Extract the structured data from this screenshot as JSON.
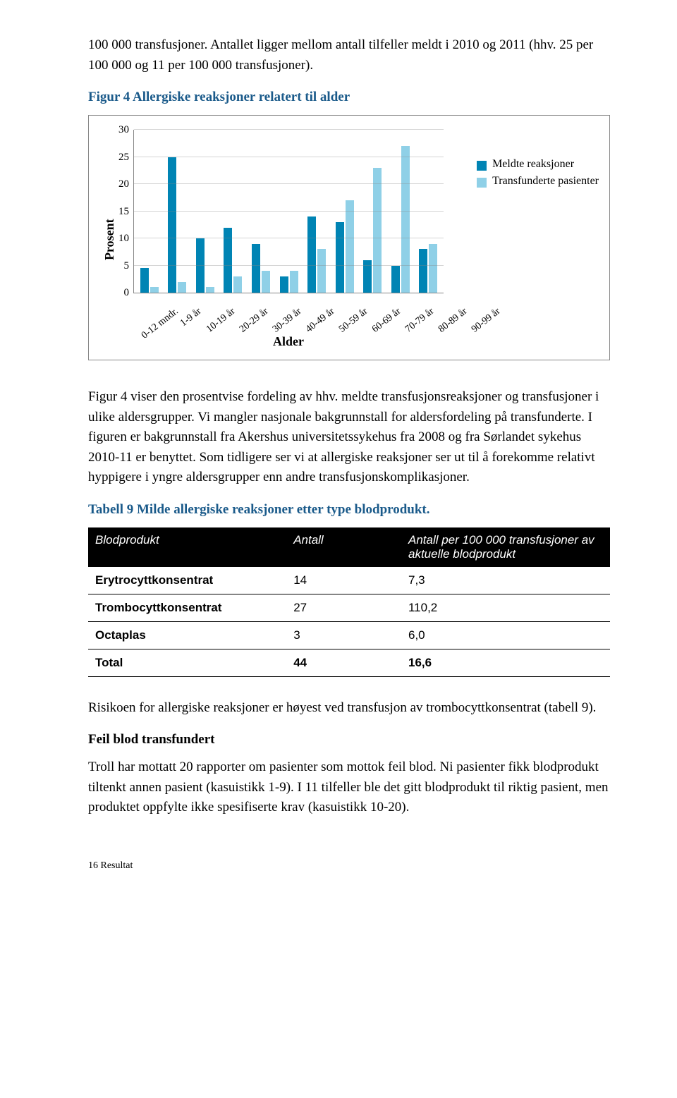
{
  "intro": "100 000 transfusjoner. Antallet ligger mellom antall tilfeller meldt i 2010 og 2011 (hhv. 25 per 100 000 og 11 per 100 000 transfusjoner).",
  "fig4_title": "Figur 4 Allergiske reaksjoner relatert til alder",
  "chart": {
    "type": "bar",
    "ylabel": "Prosent",
    "xlabel": "Alder",
    "ylim": [
      0,
      30
    ],
    "ytick_step": 5,
    "yticks": [
      "30",
      "25",
      "20",
      "15",
      "10",
      "5",
      "0"
    ],
    "categories": [
      "0-12 mndr.",
      "1-9 år",
      "10-19 år",
      "20-29 år",
      "30-39 år",
      "40-49 år",
      "50-59 år",
      "60-69 år",
      "70-79 år",
      "80-89 år",
      "90-99 år"
    ],
    "series": [
      {
        "name": "Meldte reaksjoner",
        "color": "#0084b4",
        "values": [
          4.5,
          25,
          10,
          12,
          9,
          3,
          14,
          13,
          6,
          5,
          8
        ]
      },
      {
        "name": "Transfunderte pasienter",
        "color": "#8fd0e7",
        "values": [
          1,
          2,
          1,
          3,
          4,
          4,
          8,
          17,
          23,
          27,
          9
        ]
      }
    ],
    "background_color": "#ffffff",
    "grid_color": "#bcbcbc"
  },
  "fig4_caption": "Figur 4 viser den prosentvise fordeling av hhv. meldte transfusjonsreaksjoner og transfusjoner i ulike aldersgrupper. Vi mangler nasjonale bakgrunnstall for aldersfordeling på transfunderte. I figuren er bakgrunnstall fra Akershus universitetssykehus fra 2008 og fra Sørlandet sykehus 2010-11 er benyttet. Som tidligere ser vi at allergiske reaksjoner ser ut til å forekomme relativt hyppigere i yngre aldersgrupper enn andre transfusjonskomplikasjoner.",
  "t9_title": "Tabell 9 Milde allergiske reaksjoner etter type blodprodukt.",
  "t9": {
    "columns": [
      "Blodprodukt",
      "Antall",
      "Antall per 100 000 transfusjoner av aktuelle blodprodukt"
    ],
    "rows": [
      [
        "Erytrocyttkonsentrat",
        "14",
        "7,3"
      ],
      [
        "Trombocyttkonsentrat",
        "27",
        "110,2"
      ],
      [
        "Octaplas",
        "3",
        "6,0"
      ],
      [
        "Total",
        "44",
        "16,6"
      ]
    ]
  },
  "after_t9": "Risikoen for allergiske reaksjoner er høyest ved transfusjon av trombocyttkonsentrat (tabell 9).",
  "sub2": "Feil blod transfundert",
  "p_sub2": "Troll har mottatt 20 rapporter om pasienter som mottok feil blod. Ni pasienter fikk blodprodukt tiltenkt annen pasient (kasuistikk 1-9). I 11 tilfeller ble det gitt blodprodukt til riktig pasient, men produktet oppfylte ikke spesifiserte krav (kasuistikk 10-20).",
  "footer": "16 Resultat"
}
